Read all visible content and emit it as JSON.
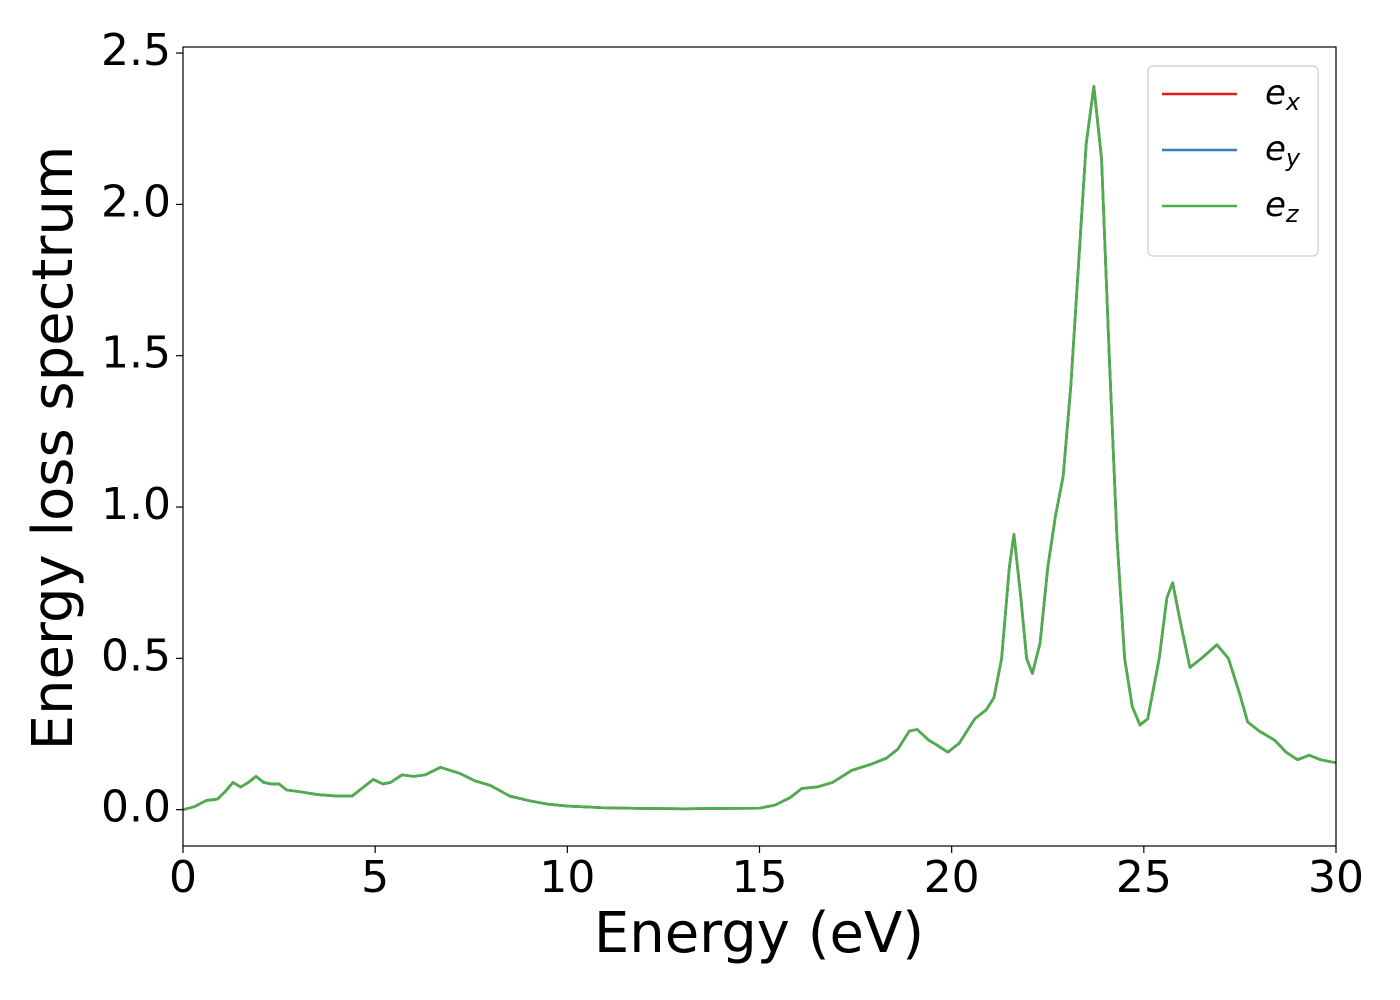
{
  "chart_data": {
    "type": "line",
    "xlabel": "Energy (eV)",
    "ylabel": "Energy loss spectrum",
    "x": [
      0,
      0.3,
      0.6,
      0.9,
      1.1,
      1.3,
      1.5,
      1.7,
      1.9,
      2.1,
      2.3,
      2.5,
      2.7,
      3.0,
      3.5,
      4.0,
      4.4,
      4.7,
      4.95,
      5.2,
      5.4,
      5.7,
      6.0,
      6.3,
      6.7,
      7.2,
      7.6,
      8.0,
      8.5,
      9.0,
      9.5,
      10,
      11,
      12,
      13,
      14,
      15,
      15.4,
      15.8,
      16.1,
      16.5,
      16.9,
      17.4,
      17.9,
      18.3,
      18.6,
      18.9,
      19.1,
      19.4,
      19.6,
      19.9,
      20.2,
      20.4,
      20.6,
      20.9,
      21.1,
      21.3,
      21.5,
      21.62,
      21.8,
      21.95,
      22.1,
      22.3,
      22.5,
      22.7,
      22.9,
      23.1,
      23.3,
      23.5,
      23.7,
      23.9,
      24.1,
      24.3,
      24.5,
      24.7,
      24.9,
      25.1,
      25.4,
      25.6,
      25.75,
      25.95,
      26.2,
      26.5,
      26.9,
      27.2,
      27.5,
      27.7,
      28.0,
      28.4,
      28.7,
      29.0,
      29.3,
      29.6,
      30
    ],
    "series": [
      {
        "name": "ex",
        "color": "#e41a1c",
        "values": [
          0.0,
          0.01,
          0.03,
          0.035,
          0.06,
          0.09,
          0.075,
          0.09,
          0.11,
          0.09,
          0.085,
          0.085,
          0.065,
          0.06,
          0.05,
          0.045,
          0.045,
          0.075,
          0.1,
          0.085,
          0.09,
          0.115,
          0.11,
          0.115,
          0.14,
          0.12,
          0.095,
          0.08,
          0.045,
          0.03,
          0.018,
          0.012,
          0.006,
          0.004,
          0.003,
          0.004,
          0.005,
          0.015,
          0.04,
          0.07,
          0.075,
          0.09,
          0.13,
          0.15,
          0.17,
          0.2,
          0.26,
          0.265,
          0.23,
          0.215,
          0.19,
          0.22,
          0.26,
          0.3,
          0.33,
          0.37,
          0.5,
          0.8,
          0.91,
          0.7,
          0.5,
          0.45,
          0.55,
          0.8,
          0.97,
          1.1,
          1.4,
          1.8,
          2.2,
          2.39,
          2.15,
          1.5,
          0.9,
          0.5,
          0.34,
          0.28,
          0.3,
          0.5,
          0.7,
          0.75,
          0.62,
          0.47,
          0.5,
          0.545,
          0.5,
          0.38,
          0.29,
          0.26,
          0.23,
          0.19,
          0.165,
          0.18,
          0.165,
          0.155
        ]
      },
      {
        "name": "ey",
        "color": "#377eb8",
        "values": [
          0.0,
          0.01,
          0.03,
          0.035,
          0.06,
          0.09,
          0.075,
          0.09,
          0.11,
          0.09,
          0.085,
          0.085,
          0.065,
          0.06,
          0.05,
          0.045,
          0.045,
          0.075,
          0.1,
          0.085,
          0.09,
          0.115,
          0.11,
          0.115,
          0.14,
          0.12,
          0.095,
          0.08,
          0.045,
          0.03,
          0.018,
          0.012,
          0.006,
          0.004,
          0.003,
          0.004,
          0.005,
          0.015,
          0.04,
          0.07,
          0.075,
          0.09,
          0.13,
          0.15,
          0.17,
          0.2,
          0.26,
          0.265,
          0.23,
          0.215,
          0.19,
          0.22,
          0.26,
          0.3,
          0.33,
          0.37,
          0.5,
          0.8,
          0.91,
          0.7,
          0.5,
          0.45,
          0.55,
          0.8,
          0.97,
          1.1,
          1.4,
          1.8,
          2.2,
          2.39,
          2.15,
          1.5,
          0.9,
          0.5,
          0.34,
          0.28,
          0.3,
          0.5,
          0.7,
          0.75,
          0.62,
          0.47,
          0.5,
          0.545,
          0.5,
          0.38,
          0.29,
          0.26,
          0.23,
          0.19,
          0.165,
          0.18,
          0.165,
          0.155
        ]
      },
      {
        "name": "ez",
        "color": "#4daf4a",
        "values": [
          0.0,
          0.01,
          0.03,
          0.035,
          0.06,
          0.09,
          0.075,
          0.09,
          0.11,
          0.09,
          0.085,
          0.085,
          0.065,
          0.06,
          0.05,
          0.045,
          0.045,
          0.075,
          0.1,
          0.085,
          0.09,
          0.115,
          0.11,
          0.115,
          0.14,
          0.12,
          0.095,
          0.08,
          0.045,
          0.03,
          0.018,
          0.012,
          0.006,
          0.004,
          0.003,
          0.004,
          0.005,
          0.015,
          0.04,
          0.07,
          0.075,
          0.09,
          0.13,
          0.15,
          0.17,
          0.2,
          0.26,
          0.265,
          0.23,
          0.215,
          0.19,
          0.22,
          0.26,
          0.3,
          0.33,
          0.37,
          0.5,
          0.8,
          0.91,
          0.7,
          0.5,
          0.45,
          0.55,
          0.8,
          0.97,
          1.1,
          1.4,
          1.8,
          2.2,
          2.39,
          2.15,
          1.5,
          0.9,
          0.5,
          0.34,
          0.28,
          0.3,
          0.5,
          0.7,
          0.75,
          0.62,
          0.47,
          0.5,
          0.545,
          0.5,
          0.38,
          0.29,
          0.26,
          0.23,
          0.19,
          0.165,
          0.18,
          0.165,
          0.155
        ]
      }
    ],
    "xlim": [
      0,
      30
    ],
    "ylim": [
      -0.12,
      2.52
    ],
    "xticks": [
      0,
      5,
      10,
      15,
      20,
      25,
      30
    ],
    "yticks": [
      {
        "value": 0,
        "label": "0.0"
      },
      {
        "value": 0.5,
        "label": "0.5"
      },
      {
        "value": 1,
        "label": "1.0"
      },
      {
        "value": 1.5,
        "label": "1.5"
      },
      {
        "value": 2,
        "label": "2.0"
      },
      {
        "value": 2.5,
        "label": "2.5"
      }
    ],
    "legend": "upper right",
    "grid": false
  }
}
